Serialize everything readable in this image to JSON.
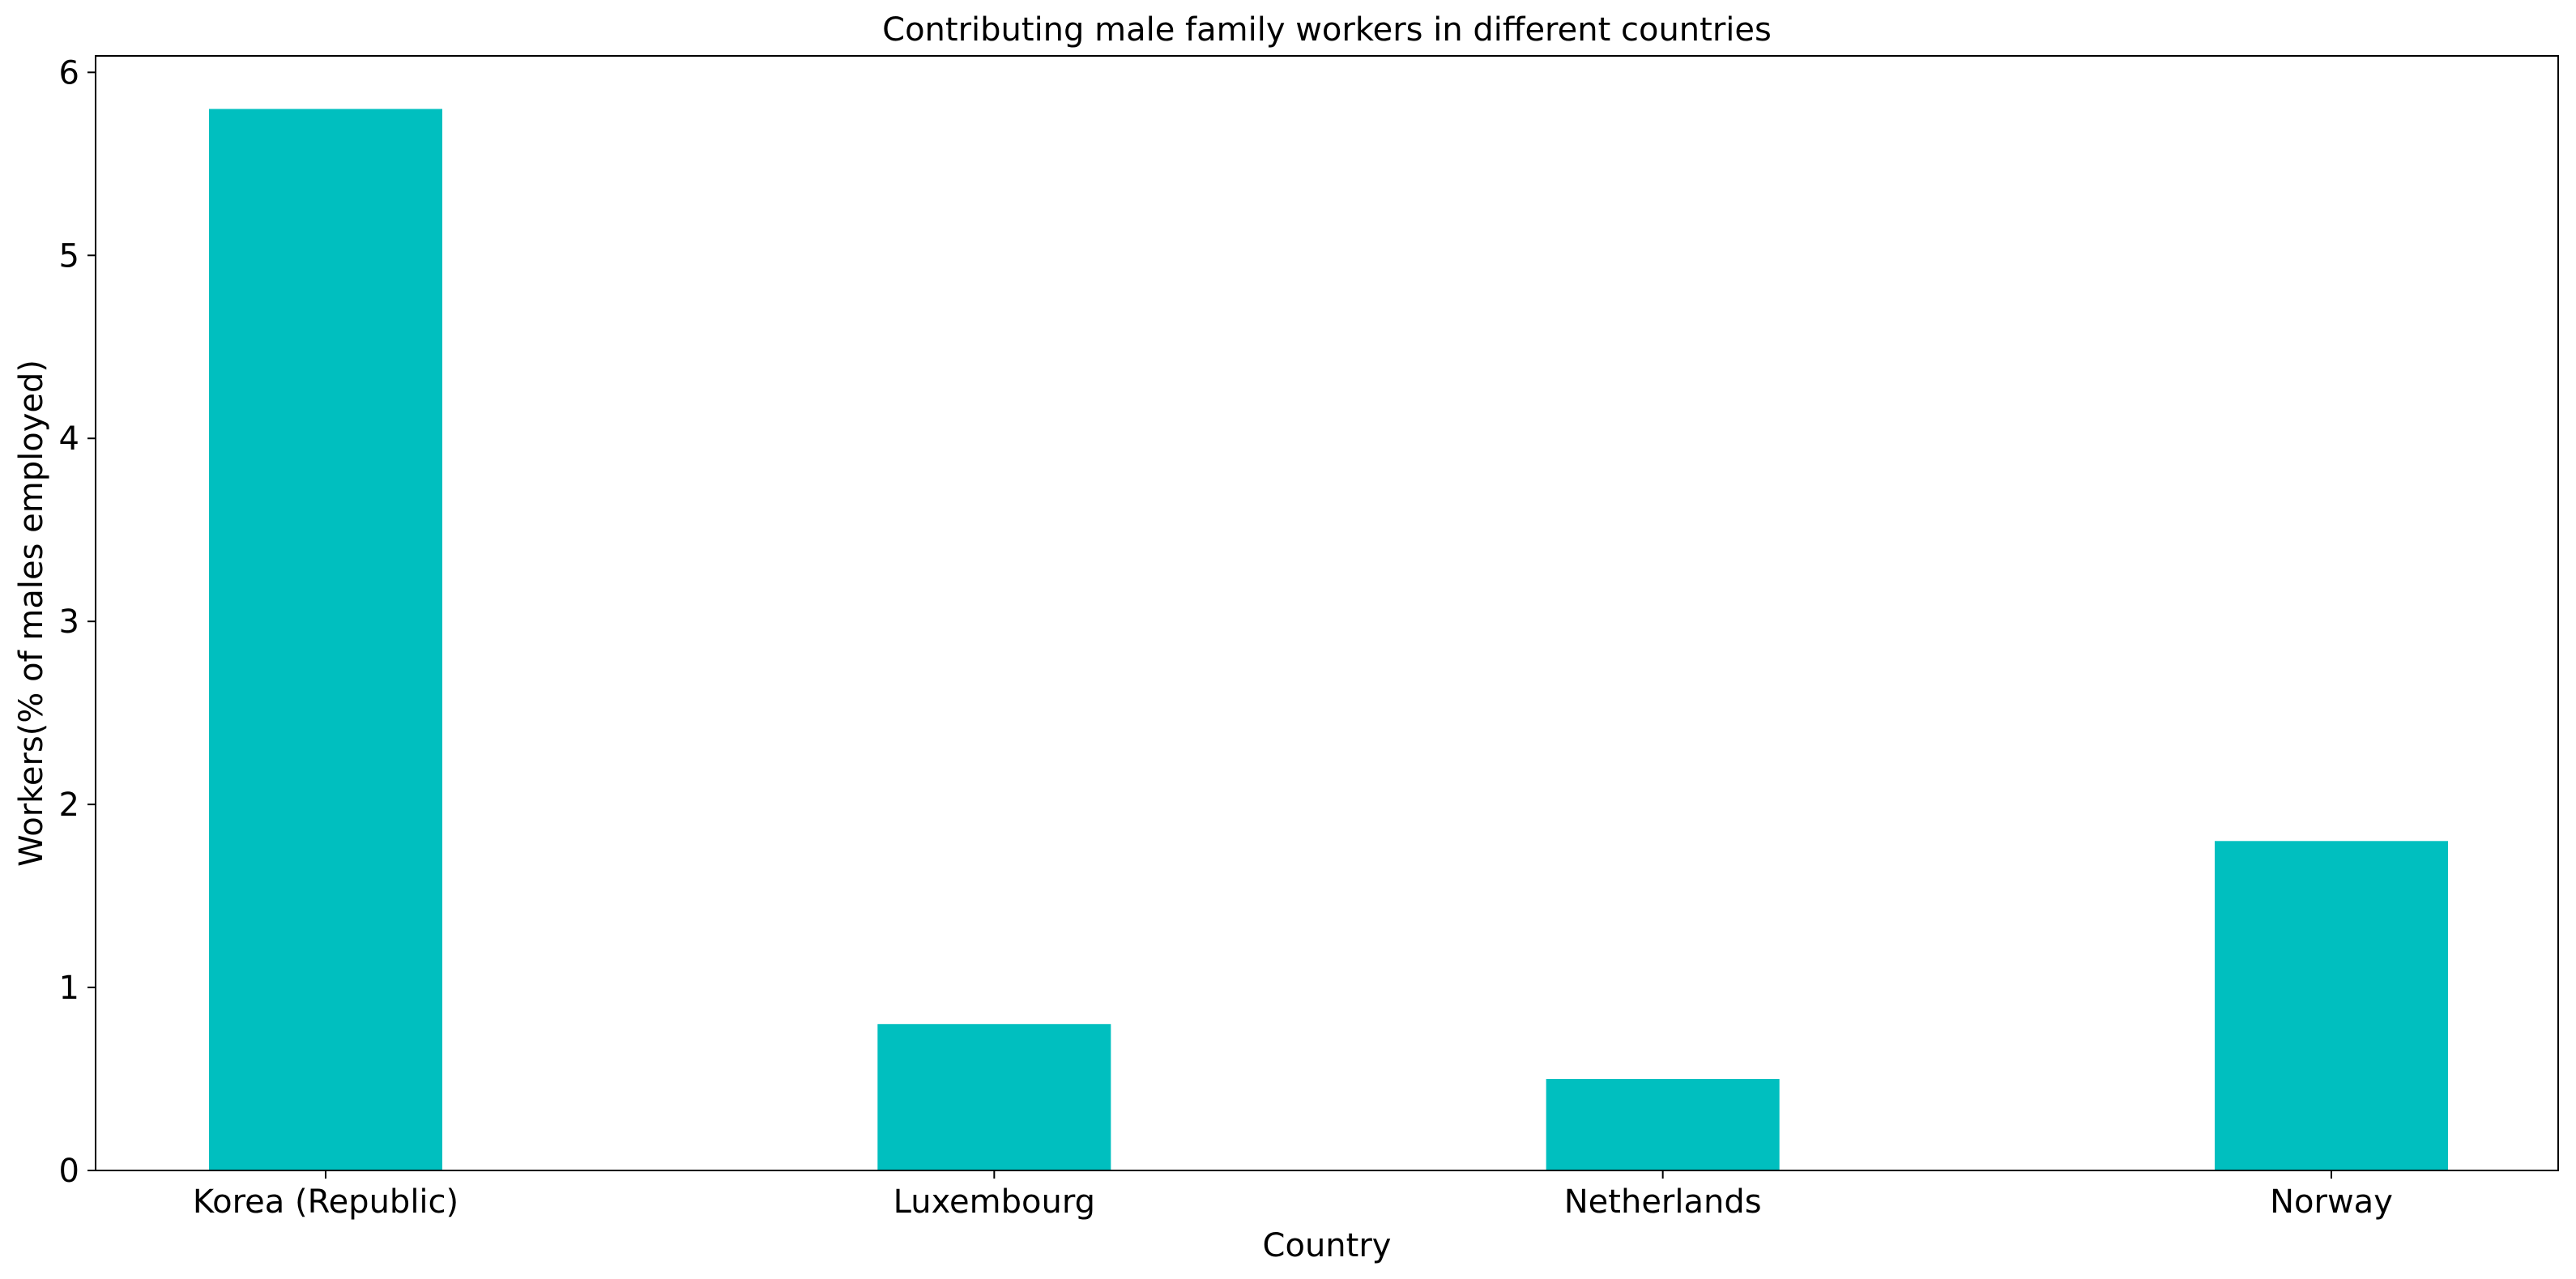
{
  "chart_data": {
    "type": "bar",
    "title": "Contributing male family workers in different countries",
    "xlabel": "Country",
    "ylabel": "Workers(% of males employed)",
    "categories": [
      "Korea (Republic)",
      "Luxembourg",
      "Netherlands",
      "Norway"
    ],
    "values": [
      5.8,
      0.8,
      0.5,
      1.8
    ],
    "ylim": [
      0,
      6.09
    ],
    "yticks": [
      0,
      1,
      2,
      3,
      4,
      5,
      6
    ],
    "grid": false,
    "bar_color": "#00bfbf"
  }
}
